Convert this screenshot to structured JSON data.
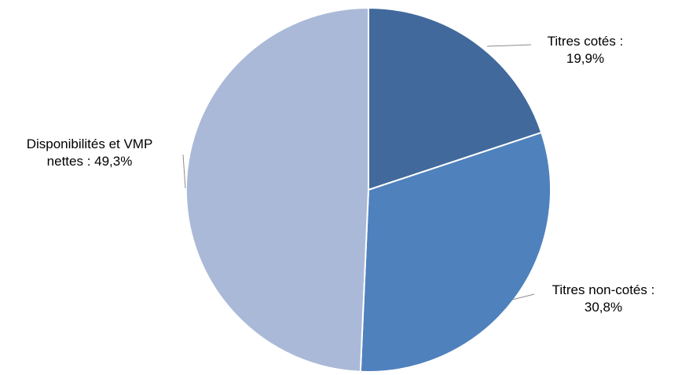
{
  "chart_data": {
    "type": "pie",
    "title": "",
    "start_angle_deg": 0,
    "direction": "clockwise",
    "slices": [
      {
        "name": "Titres cotés",
        "value": 19.9,
        "label_lines": [
          "Titres cotés :",
          "19,9%"
        ],
        "color": "#41699c"
      },
      {
        "name": "Titres non-cotés",
        "value": 30.8,
        "label_lines": [
          "Titres non-cotés :",
          "30,8%"
        ],
        "color": "#4f81bd"
      },
      {
        "name": "Disponibilités et VMP nettes",
        "value": 49.3,
        "label_lines": [
          "Disponibilités et VMP",
          "nettes : 49,3%"
        ],
        "color": "#aab9d7"
      }
    ],
    "slice_border_color": "#ffffff",
    "leader_line_color": "#8c8c8c",
    "legend": "none"
  }
}
